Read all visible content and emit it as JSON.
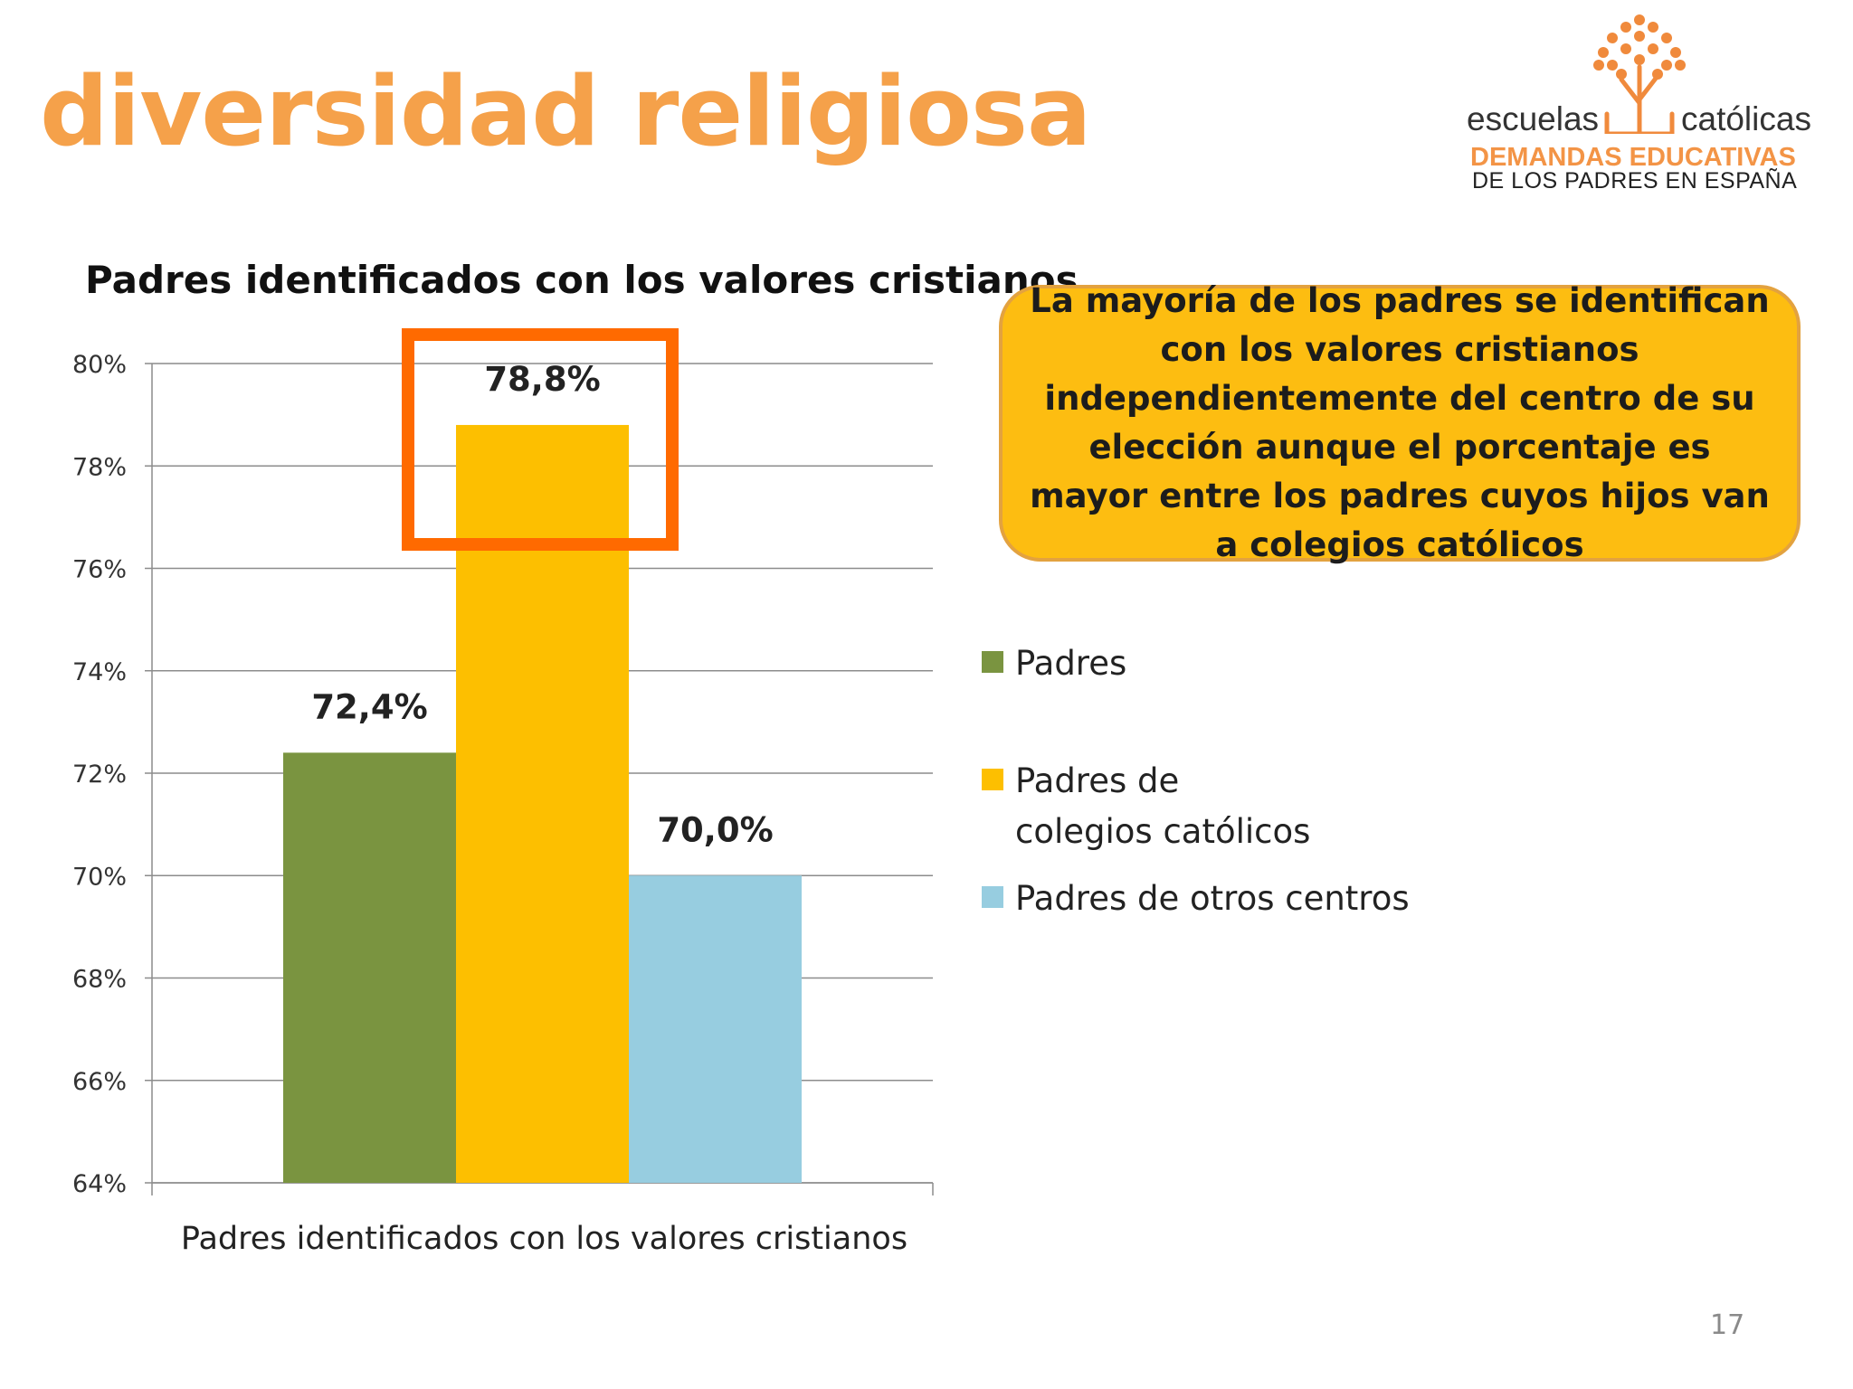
{
  "slide": {
    "title": "diversidad religiosa",
    "page_number": "17"
  },
  "logo": {
    "word_left": "escuelas",
    "word_right": "católicas",
    "tagline": "DEMANDAS EDUCATIVAS",
    "subline": "DE LOS PADRES EN ESPAÑA",
    "tree_color": "#f08a3c"
  },
  "callout": {
    "text": "La mayoría de los padres se identifican con los valores cristianos independientemente del centro de su elección aunque el porcentaje es mayor entre los padres cuyos hijos van a colegios católicos",
    "fill": "#fdbd11"
  },
  "highlight_color": "#ff6a00",
  "chart_data": {
    "type": "bar",
    "title": "Padres identificados con los valores cristianos",
    "categories": [
      "Padres identificados con los valores cristianos"
    ],
    "xlabel": "Padres identificados con los valores cristianos",
    "ylabel": "",
    "ylim": [
      64,
      80
    ],
    "ytick_step": 2,
    "ytick_format": "%",
    "grid": true,
    "legend_position": "right",
    "highlighted_series": "Padres de colegios católicos",
    "series": [
      {
        "name": "Padres",
        "values": [
          72.4
        ],
        "label": "72,4%",
        "color": "#7a9440"
      },
      {
        "name": "Padres de colegios católicos",
        "values": [
          78.8
        ],
        "label": "78,8%",
        "color": "#fdbf00"
      },
      {
        "name": "Padres de otros centros",
        "values": [
          70.0
        ],
        "label": "70,0%",
        "color": "#97cde0"
      }
    ]
  }
}
